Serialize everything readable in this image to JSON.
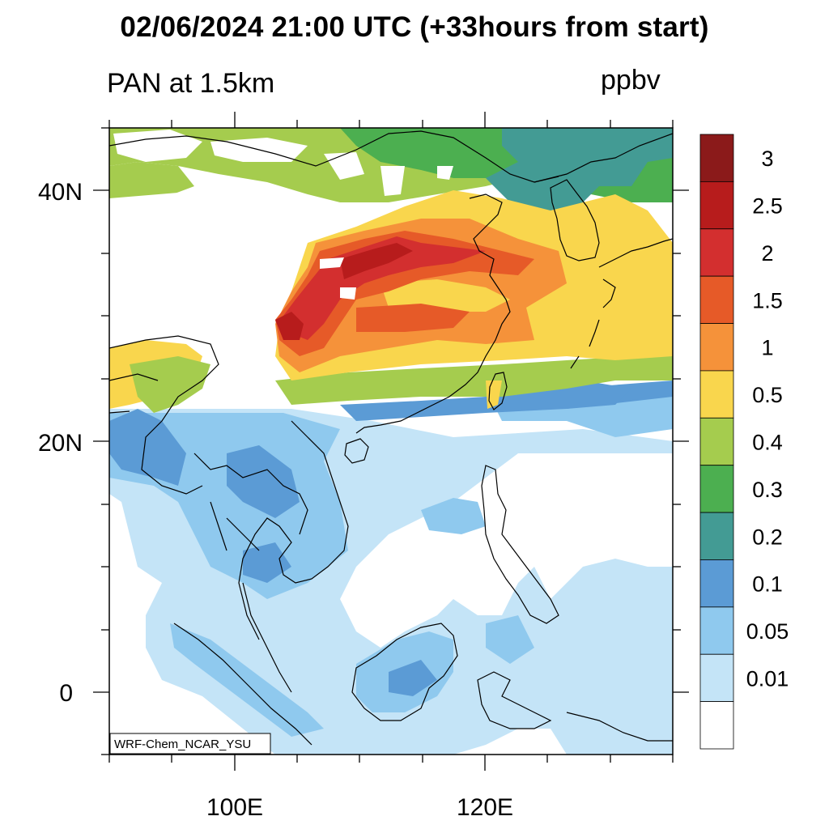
{
  "header": {
    "title": "02/06/2024 21:00 UTC (+33hours from start)",
    "variable": "PAN at 1.5km",
    "units": "ppbv"
  },
  "map": {
    "lon_range": [
      90,
      135
    ],
    "lat_range": [
      -5,
      45
    ],
    "lat_ticks": [
      {
        "value": 40,
        "label": "40N"
      },
      {
        "value": 20,
        "label": "20N"
      },
      {
        "value": 0,
        "label": "0"
      }
    ],
    "lon_ticks": [
      {
        "value": 100,
        "label": "100E"
      },
      {
        "value": 120,
        "label": "120E"
      }
    ],
    "model_label": "WRF-Chem_NCAR_YSU"
  },
  "colorbar": {
    "labels": [
      "3",
      "2.5",
      "2",
      "1.5",
      "1",
      "0.5",
      "0.4",
      "0.3",
      "0.2",
      "0.1",
      "0.05",
      "0.01"
    ],
    "colors": [
      "#8b1a1a",
      "#b71c1c",
      "#d32f2f",
      "#e65a28",
      "#f5923a",
      "#f9d64d",
      "#a5cc4e",
      "#4caf50",
      "#439b94",
      "#5b9bd5",
      "#8fc9ee",
      "#c4e4f7",
      "#ffffff"
    ]
  }
}
